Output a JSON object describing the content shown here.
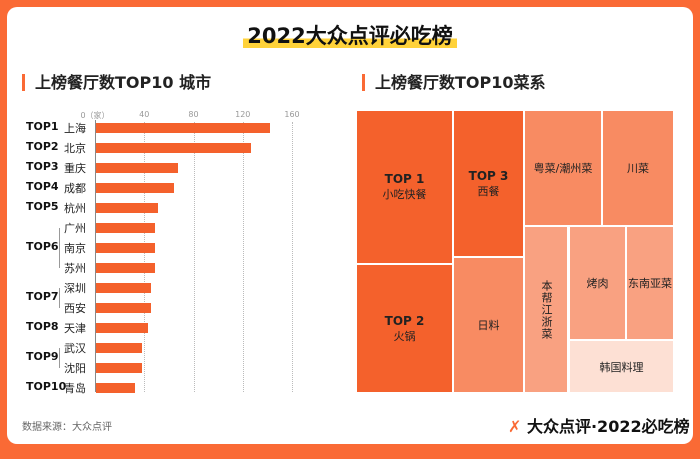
{
  "title": "2022大众点评必吃榜",
  "colors": {
    "accent": "#fa6a35",
    "highlight": "#ffd23a"
  },
  "left_section": "上榜餐厅数TOP10 城市",
  "right_section": "上榜餐厅数TOP10菜系",
  "chart_data": [
    {
      "type": "bar",
      "orientation": "horizontal",
      "xlim": [
        0,
        160
      ],
      "x_ticks": [
        "0（家）",
        "40",
        "80",
        "120",
        "160"
      ],
      "grid": true,
      "categories": [
        "上海",
        "北京",
        "重庆",
        "成都",
        "杭州",
        "广州",
        "南京",
        "苏州",
        "深圳",
        "西安",
        "天津",
        "武汉",
        "沈阳",
        "青岛"
      ],
      "values": [
        141,
        126,
        67,
        63,
        50,
        48,
        48,
        48,
        45,
        45,
        42,
        37,
        37,
        32
      ],
      "ranks": [
        {
          "label": "TOP1",
          "rows": [
            0
          ]
        },
        {
          "label": "TOP2",
          "rows": [
            1
          ]
        },
        {
          "label": "TOP3",
          "rows": [
            2
          ]
        },
        {
          "label": "TOP4",
          "rows": [
            3
          ]
        },
        {
          "label": "TOP5",
          "rows": [
            4
          ]
        },
        {
          "label": "TOP6",
          "rows": [
            5,
            6,
            7
          ]
        },
        {
          "label": "TOP7",
          "rows": [
            8,
            9
          ]
        },
        {
          "label": "TOP8",
          "rows": [
            10
          ]
        },
        {
          "label": "TOP9",
          "rows": [
            11,
            12
          ]
        },
        {
          "label": "TOP10",
          "rows": [
            13
          ]
        }
      ]
    },
    {
      "type": "treemap",
      "cells": [
        {
          "rank": "TOP 1",
          "label": "小吃快餐",
          "color": "#f4612c"
        },
        {
          "rank": "TOP 2",
          "label": "火锅",
          "color": "#f4612c"
        },
        {
          "rank": "TOP 3",
          "label": "西餐",
          "color": "#f4612c"
        },
        {
          "rank": "",
          "label": "日料",
          "color": "#f88b62"
        },
        {
          "rank": "",
          "label": "粤菜/潮州菜",
          "color": "#f88b62"
        },
        {
          "rank": "",
          "label": "川菜",
          "color": "#f88b62"
        },
        {
          "rank": "",
          "label": "本帮江浙菜",
          "color": "#f9a181"
        },
        {
          "rank": "",
          "label": "烤肉",
          "color": "#f9a181"
        },
        {
          "rank": "",
          "label": "东南亚菜",
          "color": "#f9a181"
        },
        {
          "rank": "",
          "label": "韩国料理",
          "color": "#fde0d4"
        }
      ]
    }
  ],
  "source": "数据来源：大众点评",
  "logo": "大众点评·2022必吃榜"
}
